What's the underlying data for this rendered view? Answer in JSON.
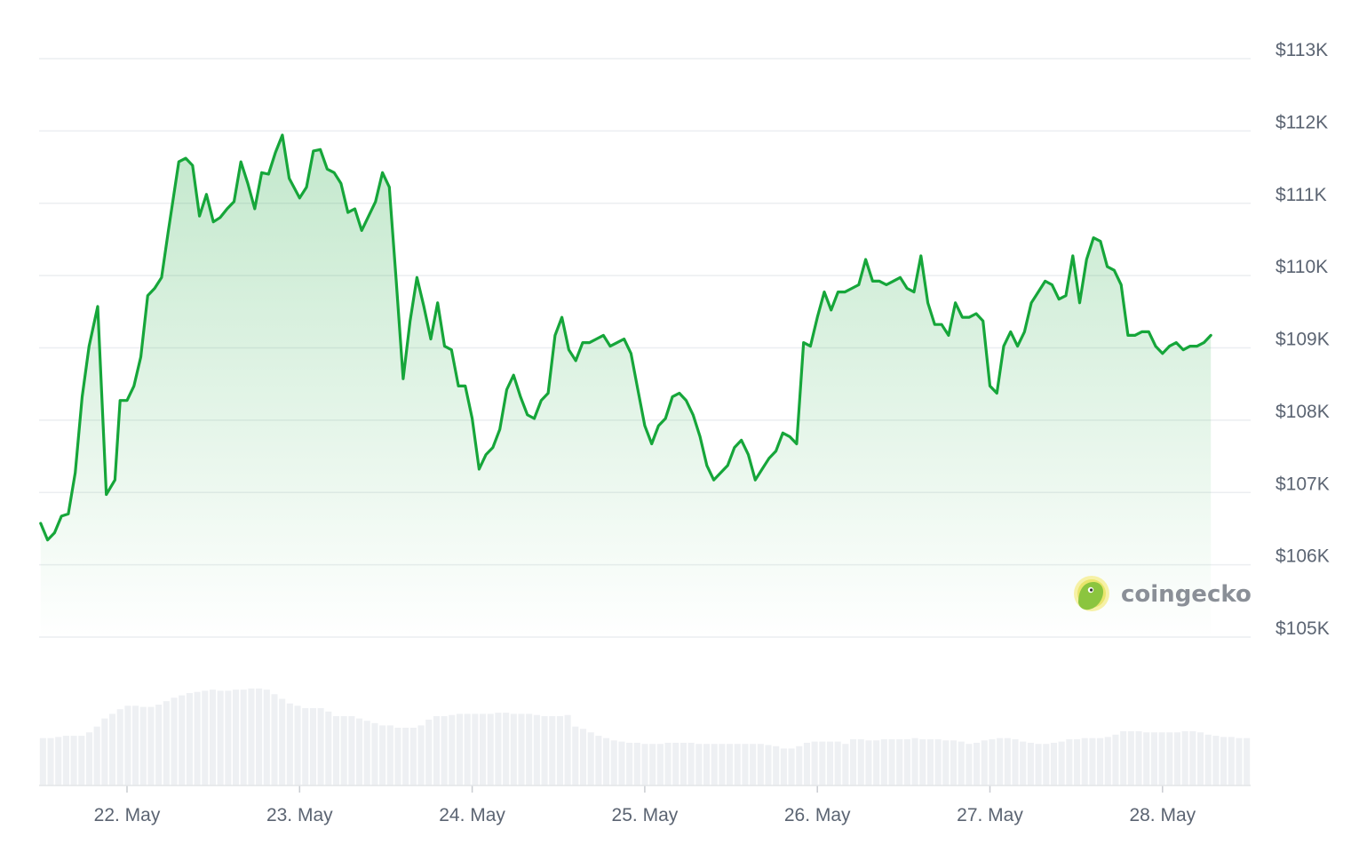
{
  "chart_data": {
    "type": "line",
    "title": "",
    "xlabel": "",
    "ylabel": "",
    "ylim": [
      105000,
      113000
    ],
    "y_ticks": [
      {
        "value": 113000,
        "label": "$113K"
      },
      {
        "value": 112000,
        "label": "$112K"
      },
      {
        "value": 111000,
        "label": "$111K"
      },
      {
        "value": 110000,
        "label": "$110K"
      },
      {
        "value": 109000,
        "label": "$109K"
      },
      {
        "value": 108000,
        "label": "$108K"
      },
      {
        "value": 107000,
        "label": "$107K"
      },
      {
        "value": 106000,
        "label": "$106K"
      },
      {
        "value": 105000,
        "label": "$105K"
      }
    ],
    "x_ticks": [
      {
        "value": 0,
        "label": "22. May"
      },
      {
        "value": 1,
        "label": "23. May"
      },
      {
        "value": 2,
        "label": "24. May"
      },
      {
        "value": 3,
        "label": "25. May"
      },
      {
        "value": 4,
        "label": "26. May"
      },
      {
        "value": 5,
        "label": "27. May"
      },
      {
        "value": 6,
        "label": "28. May"
      }
    ],
    "grid": true,
    "line_color": "#16a63a",
    "series": [
      {
        "name": "",
        "points": [
          [
            -0.5,
            106450
          ],
          [
            -0.46,
            106220
          ],
          [
            -0.42,
            106320
          ],
          [
            -0.38,
            106550
          ],
          [
            -0.34,
            106580
          ],
          [
            -0.3,
            107150
          ],
          [
            -0.26,
            108200
          ],
          [
            -0.22,
            108900
          ],
          [
            -0.17,
            109450
          ],
          [
            -0.12,
            106850
          ],
          [
            -0.07,
            107050
          ],
          [
            -0.04,
            108150
          ],
          [
            0.0,
            108150
          ],
          [
            0.04,
            108350
          ],
          [
            0.08,
            108750
          ],
          [
            0.12,
            109600
          ],
          [
            0.16,
            109700
          ],
          [
            0.2,
            109850
          ],
          [
            0.24,
            110500
          ],
          [
            0.3,
            111450
          ],
          [
            0.34,
            111500
          ],
          [
            0.38,
            111400
          ],
          [
            0.42,
            110700
          ],
          [
            0.46,
            111000
          ],
          [
            0.5,
            110620
          ],
          [
            0.54,
            110680
          ],
          [
            0.58,
            110800
          ],
          [
            0.62,
            110900
          ],
          [
            0.66,
            111450
          ],
          [
            0.7,
            111150
          ],
          [
            0.74,
            110800
          ],
          [
            0.78,
            111300
          ],
          [
            0.82,
            111280
          ],
          [
            0.86,
            111580
          ],
          [
            0.9,
            111820
          ],
          [
            0.94,
            111220
          ],
          [
            1.0,
            110950
          ],
          [
            1.04,
            111100
          ],
          [
            1.08,
            111600
          ],
          [
            1.12,
            111620
          ],
          [
            1.16,
            111350
          ],
          [
            1.2,
            111300
          ],
          [
            1.24,
            111150
          ],
          [
            1.28,
            110750
          ],
          [
            1.32,
            110800
          ],
          [
            1.36,
            110500
          ],
          [
            1.4,
            110700
          ],
          [
            1.44,
            110900
          ],
          [
            1.48,
            111300
          ],
          [
            1.52,
            111100
          ],
          [
            1.56,
            109800
          ],
          [
            1.6,
            108450
          ],
          [
            1.64,
            109250
          ],
          [
            1.68,
            109850
          ],
          [
            1.72,
            109450
          ],
          [
            1.76,
            109000
          ],
          [
            1.8,
            109500
          ],
          [
            1.84,
            108900
          ],
          [
            1.88,
            108850
          ],
          [
            1.92,
            108350
          ],
          [
            1.96,
            108350
          ],
          [
            2.0,
            107900
          ],
          [
            2.04,
            107200
          ],
          [
            2.08,
            107400
          ],
          [
            2.12,
            107500
          ],
          [
            2.16,
            107750
          ],
          [
            2.2,
            108300
          ],
          [
            2.24,
            108500
          ],
          [
            2.28,
            108200
          ],
          [
            2.32,
            107950
          ],
          [
            2.36,
            107900
          ],
          [
            2.4,
            108150
          ],
          [
            2.44,
            108250
          ],
          [
            2.48,
            109050
          ],
          [
            2.52,
            109300
          ],
          [
            2.56,
            108850
          ],
          [
            2.6,
            108700
          ],
          [
            2.64,
            108950
          ],
          [
            2.68,
            108950
          ],
          [
            2.72,
            109000
          ],
          [
            2.76,
            109050
          ],
          [
            2.8,
            108900
          ],
          [
            2.84,
            108950
          ],
          [
            2.88,
            109000
          ],
          [
            2.92,
            108800
          ],
          [
            2.96,
            108300
          ],
          [
            3.0,
            107800
          ],
          [
            3.04,
            107550
          ],
          [
            3.08,
            107800
          ],
          [
            3.12,
            107900
          ],
          [
            3.16,
            108200
          ],
          [
            3.2,
            108250
          ],
          [
            3.24,
            108150
          ],
          [
            3.28,
            107950
          ],
          [
            3.32,
            107650
          ],
          [
            3.36,
            107250
          ],
          [
            3.4,
            107050
          ],
          [
            3.44,
            107150
          ],
          [
            3.48,
            107250
          ],
          [
            3.52,
            107500
          ],
          [
            3.56,
            107600
          ],
          [
            3.6,
            107400
          ],
          [
            3.64,
            107050
          ],
          [
            3.68,
            107200
          ],
          [
            3.72,
            107350
          ],
          [
            3.76,
            107450
          ],
          [
            3.8,
            107700
          ],
          [
            3.84,
            107650
          ],
          [
            3.88,
            107550
          ],
          [
            3.92,
            108950
          ],
          [
            3.96,
            108900
          ],
          [
            4.0,
            109300
          ],
          [
            4.04,
            109650
          ],
          [
            4.08,
            109400
          ],
          [
            4.12,
            109650
          ],
          [
            4.16,
            109650
          ],
          [
            4.2,
            109700
          ],
          [
            4.24,
            109750
          ],
          [
            4.28,
            110100
          ],
          [
            4.32,
            109800
          ],
          [
            4.36,
            109800
          ],
          [
            4.4,
            109750
          ],
          [
            4.44,
            109800
          ],
          [
            4.48,
            109850
          ],
          [
            4.52,
            109700
          ],
          [
            4.56,
            109650
          ],
          [
            4.6,
            110150
          ],
          [
            4.64,
            109500
          ],
          [
            4.68,
            109200
          ],
          [
            4.72,
            109200
          ],
          [
            4.76,
            109050
          ],
          [
            4.8,
            109500
          ],
          [
            4.84,
            109300
          ],
          [
            4.88,
            109300
          ],
          [
            4.92,
            109350
          ],
          [
            4.96,
            109250
          ],
          [
            5.0,
            108350
          ],
          [
            5.04,
            108250
          ],
          [
            5.08,
            108900
          ],
          [
            5.12,
            109100
          ],
          [
            5.16,
            108900
          ],
          [
            5.2,
            109100
          ],
          [
            5.24,
            109500
          ],
          [
            5.28,
            109650
          ],
          [
            5.32,
            109800
          ],
          [
            5.36,
            109750
          ],
          [
            5.4,
            109550
          ],
          [
            5.44,
            109600
          ],
          [
            5.48,
            110150
          ],
          [
            5.52,
            109500
          ],
          [
            5.56,
            110100
          ],
          [
            5.6,
            110400
          ],
          [
            5.64,
            110350
          ],
          [
            5.68,
            110000
          ],
          [
            5.72,
            109950
          ],
          [
            5.76,
            109750
          ],
          [
            5.8,
            109050
          ],
          [
            5.84,
            109050
          ],
          [
            5.88,
            109100
          ],
          [
            5.92,
            109100
          ],
          [
            5.96,
            108900
          ],
          [
            6.0,
            108800
          ],
          [
            6.04,
            108900
          ],
          [
            6.08,
            108950
          ],
          [
            6.12,
            108850
          ],
          [
            6.16,
            108900
          ],
          [
            6.2,
            108900
          ],
          [
            6.24,
            108950
          ],
          [
            6.28,
            109050
          ]
        ]
      }
    ],
    "volume_bars": [
      0.41,
      0.41,
      0.42,
      0.43,
      0.43,
      0.43,
      0.46,
      0.51,
      0.58,
      0.62,
      0.66,
      0.69,
      0.69,
      0.68,
      0.68,
      0.7,
      0.73,
      0.76,
      0.78,
      0.8,
      0.81,
      0.82,
      0.83,
      0.82,
      0.82,
      0.83,
      0.83,
      0.84,
      0.84,
      0.83,
      0.79,
      0.75,
      0.71,
      0.69,
      0.67,
      0.67,
      0.67,
      0.64,
      0.6,
      0.6,
      0.6,
      0.58,
      0.56,
      0.54,
      0.52,
      0.52,
      0.5,
      0.5,
      0.5,
      0.52,
      0.57,
      0.6,
      0.6,
      0.61,
      0.62,
      0.62,
      0.62,
      0.62,
      0.62,
      0.63,
      0.63,
      0.62,
      0.62,
      0.62,
      0.61,
      0.6,
      0.6,
      0.6,
      0.61,
      0.51,
      0.49,
      0.46,
      0.43,
      0.41,
      0.39,
      0.38,
      0.37,
      0.37,
      0.36,
      0.36,
      0.36,
      0.37,
      0.37,
      0.37,
      0.37,
      0.36,
      0.36,
      0.36,
      0.36,
      0.36,
      0.36,
      0.36,
      0.36,
      0.36,
      0.35,
      0.34,
      0.32,
      0.32,
      0.34,
      0.37,
      0.38,
      0.38,
      0.38,
      0.38,
      0.36,
      0.4,
      0.4,
      0.39,
      0.39,
      0.4,
      0.4,
      0.4,
      0.4,
      0.41,
      0.4,
      0.4,
      0.4,
      0.39,
      0.39,
      0.38,
      0.36,
      0.37,
      0.39,
      0.4,
      0.41,
      0.41,
      0.4,
      0.38,
      0.37,
      0.36,
      0.36,
      0.37,
      0.38,
      0.4,
      0.4,
      0.41,
      0.41,
      0.41,
      0.42,
      0.44,
      0.47,
      0.47,
      0.47,
      0.46,
      0.46,
      0.46,
      0.46,
      0.46,
      0.47,
      0.47,
      0.46,
      0.44,
      0.43,
      0.42,
      0.42,
      0.41,
      0.41
    ]
  },
  "watermark": {
    "text": "coingecko",
    "icon": "gecko-logo-icon"
  }
}
